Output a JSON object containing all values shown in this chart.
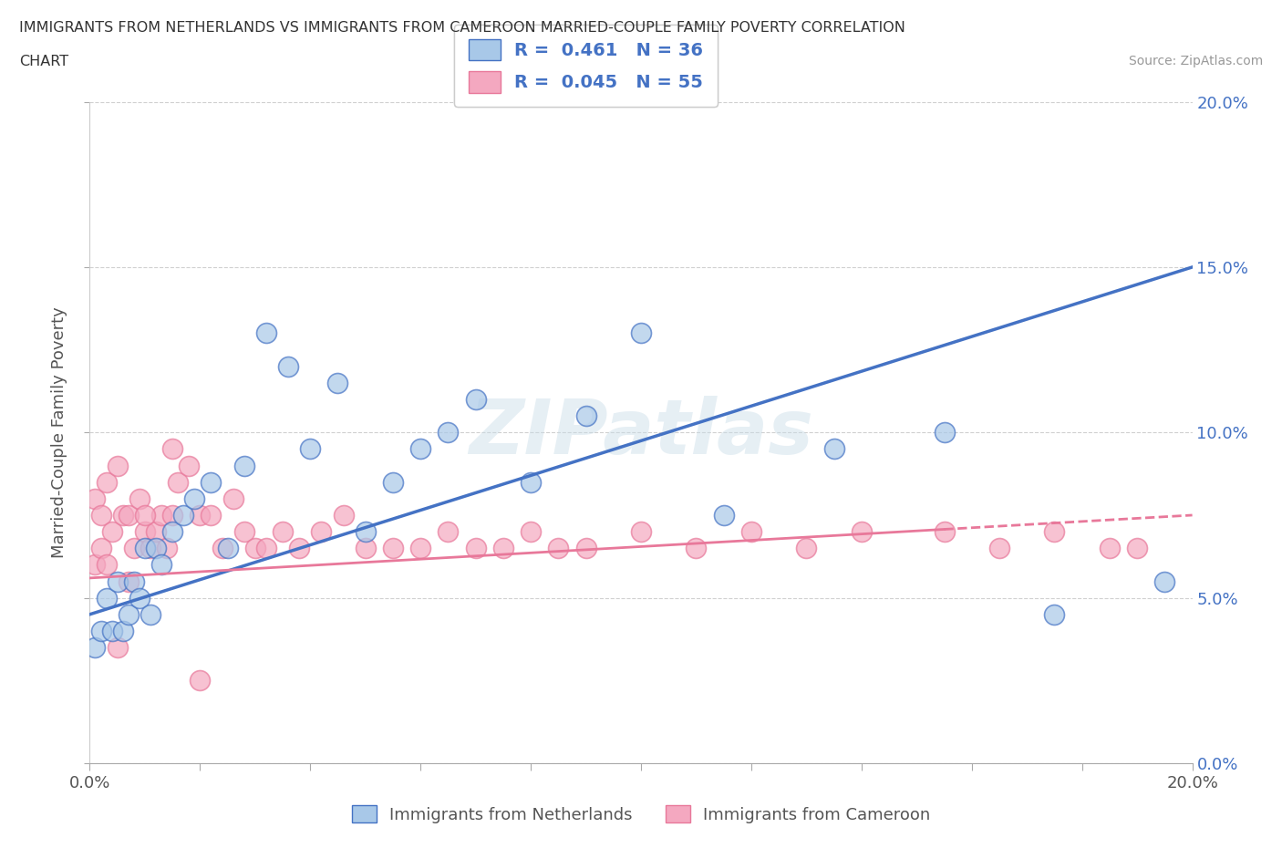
{
  "title_line1": "IMMIGRANTS FROM NETHERLANDS VS IMMIGRANTS FROM CAMEROON MARRIED-COUPLE FAMILY POVERTY CORRELATION",
  "title_line2": "CHART",
  "source": "Source: ZipAtlas.com",
  "ylabel": "Married-Couple Family Poverty",
  "xlabel_netherlands": "Immigrants from Netherlands",
  "xlabel_cameroon": "Immigrants from Cameroon",
  "xlim": [
    0.0,
    0.2
  ],
  "ylim": [
    0.0,
    0.2
  ],
  "netherlands_R": 0.461,
  "netherlands_N": 36,
  "cameroon_R": 0.045,
  "cameroon_N": 55,
  "netherlands_color": "#a8c8e8",
  "cameroon_color": "#f4a8c0",
  "netherlands_line_color": "#4472c4",
  "cameroon_line_color": "#e8789a",
  "nl_line_start_y": 0.045,
  "nl_line_end_y": 0.15,
  "cam_line_start_y": 0.056,
  "cam_line_end_y": 0.075,
  "cam_line_solid_end_x": 0.155,
  "netherlands_x": [
    0.001,
    0.002,
    0.003,
    0.004,
    0.005,
    0.006,
    0.007,
    0.008,
    0.009,
    0.01,
    0.011,
    0.012,
    0.013,
    0.015,
    0.017,
    0.019,
    0.022,
    0.025,
    0.028,
    0.032,
    0.036,
    0.04,
    0.045,
    0.05,
    0.055,
    0.06,
    0.065,
    0.07,
    0.08,
    0.09,
    0.1,
    0.115,
    0.135,
    0.155,
    0.175,
    0.195
  ],
  "netherlands_y": [
    0.035,
    0.04,
    0.05,
    0.04,
    0.055,
    0.04,
    0.045,
    0.055,
    0.05,
    0.065,
    0.045,
    0.065,
    0.06,
    0.07,
    0.075,
    0.08,
    0.085,
    0.065,
    0.09,
    0.13,
    0.12,
    0.095,
    0.115,
    0.07,
    0.085,
    0.095,
    0.1,
    0.11,
    0.085,
    0.105,
    0.13,
    0.075,
    0.095,
    0.1,
    0.045,
    0.055
  ],
  "cameroon_x": [
    0.001,
    0.002,
    0.003,
    0.004,
    0.005,
    0.006,
    0.007,
    0.008,
    0.009,
    0.01,
    0.011,
    0.012,
    0.013,
    0.014,
    0.015,
    0.016,
    0.018,
    0.02,
    0.022,
    0.024,
    0.026,
    0.028,
    0.03,
    0.032,
    0.035,
    0.038,
    0.042,
    0.046,
    0.05,
    0.055,
    0.06,
    0.065,
    0.07,
    0.075,
    0.08,
    0.085,
    0.09,
    0.1,
    0.11,
    0.12,
    0.13,
    0.14,
    0.155,
    0.165,
    0.175,
    0.185,
    0.19,
    0.001,
    0.002,
    0.003,
    0.005,
    0.007,
    0.01,
    0.015,
    0.02
  ],
  "cameroon_y": [
    0.08,
    0.075,
    0.085,
    0.07,
    0.09,
    0.075,
    0.075,
    0.065,
    0.08,
    0.07,
    0.065,
    0.07,
    0.075,
    0.065,
    0.095,
    0.085,
    0.09,
    0.075,
    0.075,
    0.065,
    0.08,
    0.07,
    0.065,
    0.065,
    0.07,
    0.065,
    0.07,
    0.075,
    0.065,
    0.065,
    0.065,
    0.07,
    0.065,
    0.065,
    0.07,
    0.065,
    0.065,
    0.07,
    0.065,
    0.07,
    0.065,
    0.07,
    0.07,
    0.065,
    0.07,
    0.065,
    0.065,
    0.06,
    0.065,
    0.06,
    0.035,
    0.055,
    0.075,
    0.075,
    0.025
  ]
}
